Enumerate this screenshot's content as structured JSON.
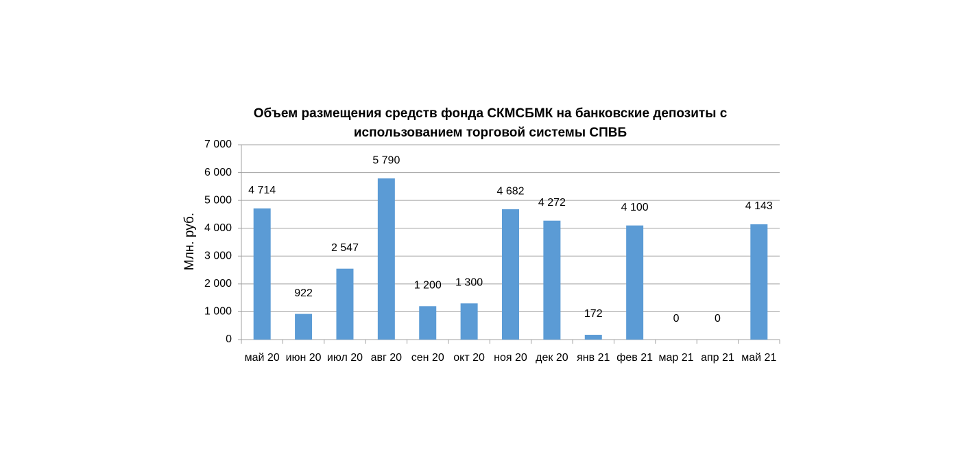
{
  "chart_data": {
    "type": "bar",
    "title": "Объем размещения средств фонда СКМСБМК на банковские депозиты с использованием торговой системы СПВБ",
    "y_label": "Млн. руб.",
    "categories": [
      "май 20",
      "июн 20",
      "июл 20",
      "авг 20",
      "сен 20",
      "окт 20",
      "ноя 20",
      "дек 20",
      "янв 21",
      "фев 21",
      "мар 21",
      "апр 21",
      "май 21"
    ],
    "values": [
      4714,
      922,
      2547,
      5790,
      1200,
      1300,
      4682,
      4272,
      172,
      4100,
      0,
      0,
      4143
    ],
    "value_labels": [
      "4 714",
      "922",
      "2 547",
      "5 790",
      "1 200",
      "1 300",
      "4 682",
      "4 272",
      "172",
      "4 100",
      "0",
      "0",
      "4 143"
    ],
    "color": "#5b9bd5",
    "ylim": [
      0,
      7000
    ],
    "yticks": [
      0,
      {
        "value": 1000,
        "label": "1 000"
      },
      {
        "value": 2000,
        "label": "2 000"
      },
      {
        "value": 3000,
        "label": "3 000"
      },
      {
        "value": 4000,
        "label": "4 000"
      },
      {
        "value": 5000,
        "label": "5 000"
      },
      {
        "value": 6000,
        "label": "6 000"
      },
      {
        "value": 7000,
        "label": "7 000"
      }
    ],
    "grid": true
  }
}
